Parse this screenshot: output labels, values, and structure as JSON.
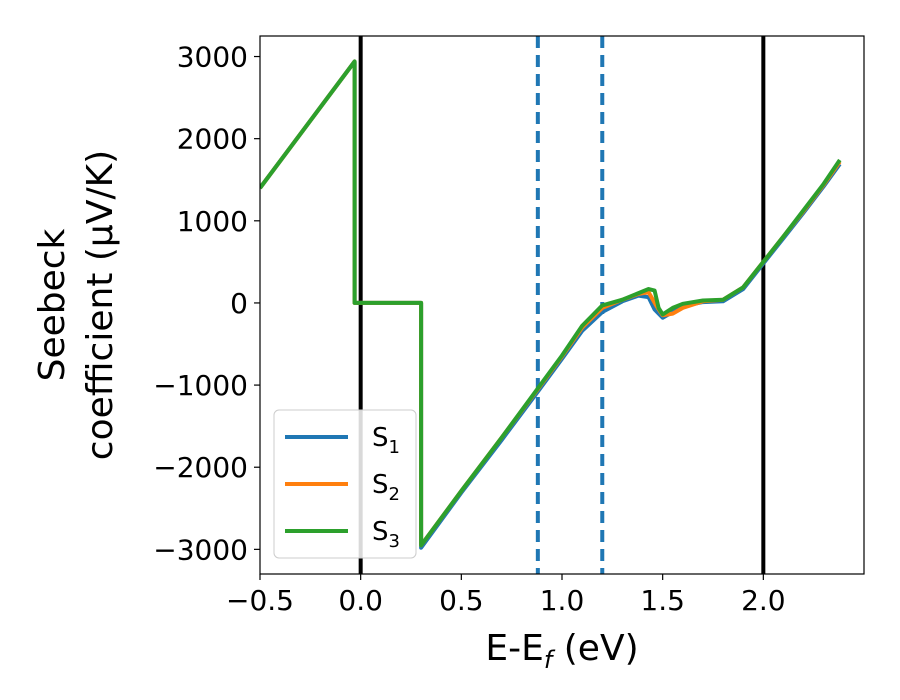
{
  "chart_data": {
    "type": "line",
    "xlabel": "E-E",
    "xlabel_sub": "f",
    "xlabel_unit": " (eV)",
    "ylabel_line1": "Seebeck",
    "ylabel_line2": "coefficient  (μV/K)",
    "xlim": [
      -0.5,
      2.5
    ],
    "ylim": [
      -3300,
      3250
    ],
    "x_ticks": [
      -0.5,
      0.0,
      0.5,
      1.0,
      1.5,
      2.0
    ],
    "x_tick_labels": [
      "−0.5",
      "0.0",
      "0.5",
      "1.0",
      "1.5",
      "2.0"
    ],
    "y_ticks": [
      -3000,
      -2000,
      -1000,
      0,
      1000,
      2000,
      3000
    ],
    "y_tick_labels": [
      "−3000",
      "−2000",
      "−1000",
      "0",
      "1000",
      "2000",
      "3000"
    ],
    "grid": false,
    "legend_position": "lower-left",
    "vertical_lines": [
      {
        "x": 0.0,
        "color": "#000000",
        "style": "solid"
      },
      {
        "x": 2.0,
        "color": "#000000",
        "style": "solid"
      },
      {
        "x": 0.88,
        "color": "#1f77b4",
        "style": "dashed"
      },
      {
        "x": 1.2,
        "color": "#1f77b4",
        "style": "dashed"
      }
    ],
    "series": [
      {
        "name": "S",
        "sub": "1",
        "color": "#1f77b4",
        "points": [
          [
            -0.5,
            1400
          ],
          [
            -0.03,
            2940
          ],
          [
            -0.03,
            0
          ],
          [
            0.3,
            0
          ],
          [
            0.3,
            -2980
          ],
          [
            0.5,
            -2310
          ],
          [
            0.7,
            -1670
          ],
          [
            0.88,
            -1080
          ],
          [
            1.0,
            -680
          ],
          [
            1.1,
            -340
          ],
          [
            1.2,
            -110
          ],
          [
            1.3,
            20
          ],
          [
            1.38,
            90
          ],
          [
            1.43,
            70
          ],
          [
            1.46,
            -80
          ],
          [
            1.5,
            -180
          ],
          [
            1.55,
            -110
          ],
          [
            1.6,
            -40
          ],
          [
            1.7,
            10
          ],
          [
            1.8,
            20
          ],
          [
            1.9,
            170
          ],
          [
            2.0,
            480
          ],
          [
            2.1,
            790
          ],
          [
            2.2,
            1100
          ],
          [
            2.3,
            1420
          ],
          [
            2.38,
            1690
          ]
        ]
      },
      {
        "name": "S",
        "sub": "2",
        "color": "#ff7f0e",
        "points": [
          [
            -0.5,
            1400
          ],
          [
            -0.03,
            2940
          ],
          [
            -0.03,
            0
          ],
          [
            0.3,
            0
          ],
          [
            0.3,
            -2950
          ],
          [
            0.5,
            -2290
          ],
          [
            0.7,
            -1640
          ],
          [
            0.88,
            -1050
          ],
          [
            1.0,
            -650
          ],
          [
            1.1,
            -300
          ],
          [
            1.2,
            -60
          ],
          [
            1.3,
            40
          ],
          [
            1.38,
            110
          ],
          [
            1.43,
            130
          ],
          [
            1.47,
            -40
          ],
          [
            1.5,
            -150
          ],
          [
            1.55,
            -130
          ],
          [
            1.6,
            -60
          ],
          [
            1.7,
            20
          ],
          [
            1.8,
            40
          ],
          [
            1.9,
            190
          ],
          [
            2.0,
            500
          ],
          [
            2.1,
            810
          ],
          [
            2.2,
            1120
          ],
          [
            2.3,
            1440
          ],
          [
            2.38,
            1720
          ]
        ]
      },
      {
        "name": "S",
        "sub": "3",
        "color": "#2ca02c",
        "points": [
          [
            -0.5,
            1400
          ],
          [
            -0.03,
            2940
          ],
          [
            -0.03,
            0
          ],
          [
            0.3,
            0
          ],
          [
            0.3,
            -2950
          ],
          [
            0.5,
            -2290
          ],
          [
            0.7,
            -1640
          ],
          [
            0.88,
            -1040
          ],
          [
            1.0,
            -640
          ],
          [
            1.1,
            -280
          ],
          [
            1.2,
            -30
          ],
          [
            1.3,
            40
          ],
          [
            1.38,
            120
          ],
          [
            1.43,
            170
          ],
          [
            1.46,
            150
          ],
          [
            1.48,
            -60
          ],
          [
            1.5,
            -140
          ],
          [
            1.55,
            -60
          ],
          [
            1.6,
            -10
          ],
          [
            1.7,
            30
          ],
          [
            1.8,
            40
          ],
          [
            1.9,
            190
          ],
          [
            2.0,
            500
          ],
          [
            2.1,
            810
          ],
          [
            2.2,
            1130
          ],
          [
            2.3,
            1450
          ],
          [
            2.38,
            1740
          ]
        ]
      }
    ]
  }
}
